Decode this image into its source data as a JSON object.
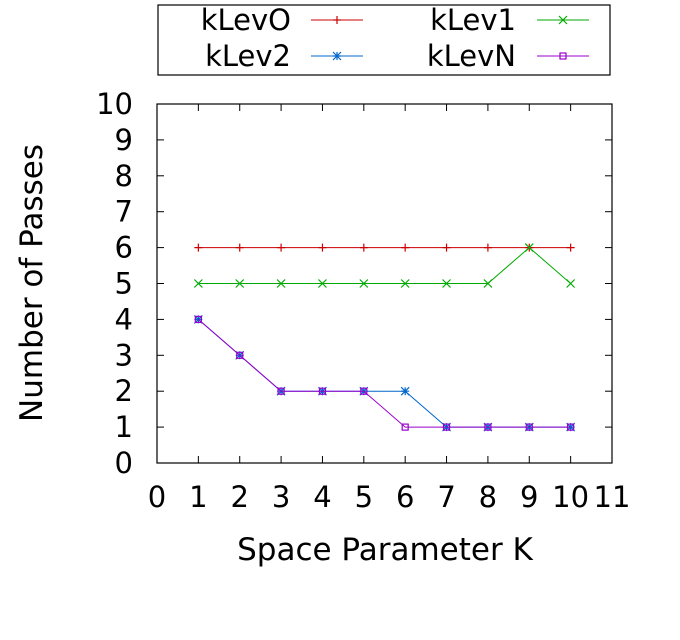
{
  "chart_data": {
    "type": "line",
    "xlabel": "Space Parameter K",
    "ylabel": "Number of Passes",
    "xlim": [
      0,
      11
    ],
    "ylim": [
      0,
      10
    ],
    "xticks": [
      "0",
      "1",
      "2",
      "3",
      "4",
      "5",
      "6",
      "7",
      "8",
      "9",
      "10",
      "11"
    ],
    "yticks": [
      "0",
      "1",
      "2",
      "3",
      "4",
      "5",
      "6",
      "7",
      "8",
      "9",
      "10"
    ],
    "grid": false,
    "legend_position": "top, above plot",
    "x": [
      1,
      2,
      3,
      4,
      5,
      6,
      7,
      8,
      9,
      10
    ],
    "series": [
      {
        "name": "kLevO",
        "color": "#cc0000",
        "marker": "plus",
        "values": [
          6,
          6,
          6,
          6,
          6,
          6,
          6,
          6,
          6,
          6
        ]
      },
      {
        "name": "kLev1",
        "color": "#00aa00",
        "marker": "cross",
        "values": [
          5,
          5,
          5,
          5,
          5,
          5,
          5,
          5,
          6,
          5
        ]
      },
      {
        "name": "kLev2",
        "color": "#0066cc",
        "marker": "star",
        "values": [
          4,
          3,
          2,
          2,
          2,
          2,
          1,
          1,
          1,
          1
        ]
      },
      {
        "name": "kLevN",
        "color": "#9900cc",
        "marker": "square",
        "values": [
          4,
          3,
          2,
          2,
          2,
          1,
          1,
          1,
          1,
          1
        ]
      }
    ]
  }
}
